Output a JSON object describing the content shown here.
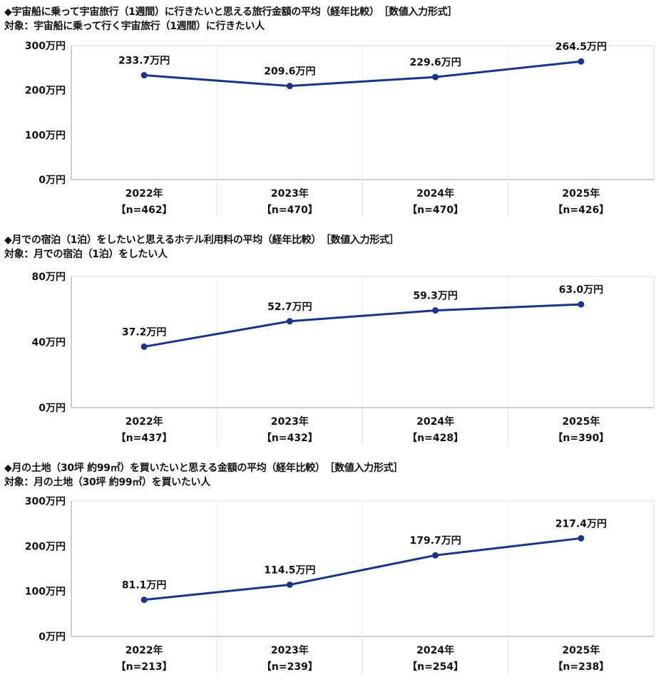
{
  "colors": {
    "line": "#1a3585",
    "grid": "#d9d9d9",
    "axis": "#bfbfbf"
  },
  "charts": [
    {
      "title": "◆宇宙船に乗って宇宙旅行（1週間）に行きたいと思える旅行金額の平均（経年比較）　［数値入力形式］",
      "subtitle": "対象：宇宙船に乗って行く宇宙旅行（1週間）に行きたい人",
      "yticks": [
        "0万円",
        "100万円",
        "200万円",
        "300万円"
      ],
      "years": [
        "2022年",
        "2023年",
        "2024年",
        "2025年"
      ],
      "n": [
        "【n=462】",
        "【n=470】",
        "【n=470】",
        "【n=426】"
      ],
      "labels": [
        "233.7万円",
        "209.6万円",
        "229.6万円",
        "264.5万円"
      ]
    },
    {
      "title": "◆月での宿泊（1泊）をしたいと思えるホテル利用料の平均（経年比較）　［数値入力形式］",
      "subtitle": "対象：月での宿泊（1泊）をしたい人",
      "yticks": [
        "0万円",
        "40万円",
        "80万円"
      ],
      "years": [
        "2022年",
        "2023年",
        "2024年",
        "2025年"
      ],
      "n": [
        "【n=437】",
        "【n=432】",
        "【n=428】",
        "【n=390】"
      ],
      "labels": [
        "37.2万円",
        "52.7万円",
        "59.3万円",
        "63.0万円"
      ]
    },
    {
      "title": "◆月の土地（30坪 約99㎡）を買いたいと思える金額の平均（経年比較）　［数値入力形式］",
      "subtitle": "対象：月の土地（30坪 約99㎡）を買いたい人",
      "yticks": [
        "0万円",
        "100万円",
        "200万円",
        "300万円"
      ],
      "years": [
        "2022年",
        "2023年",
        "2024年",
        "2025年"
      ],
      "n": [
        "【n=213】",
        "【n=239】",
        "【n=254】",
        "【n=238】"
      ],
      "labels": [
        "81.1万円",
        "114.5万円",
        "179.7万円",
        "217.4万円"
      ]
    }
  ],
  "chart_data": [
    {
      "type": "line",
      "title": "◆宇宙船に乗って宇宙旅行（1週間）に行きたいと思える旅行金額の平均（経年比較）　［数値入力形式］",
      "subtitle": "対象：宇宙船に乗って行く宇宙旅行（1週間）に行きたい人",
      "categories": [
        "2022年【n=462】",
        "2023年【n=470】",
        "2024年【n=470】",
        "2025年【n=426】"
      ],
      "values": [
        233.7,
        209.6,
        229.6,
        264.5
      ],
      "unit": "万円",
      "ylim": [
        0,
        300
      ],
      "yticks": [
        0,
        100,
        200,
        300
      ],
      "xlabel": "",
      "ylabel": "",
      "grid": "vertical category separators",
      "legend": "none"
    },
    {
      "type": "line",
      "title": "◆月での宿泊（1泊）をしたいと思えるホテル利用料の平均（経年比較）　［数値入力形式］",
      "subtitle": "対象：月での宿泊（1泊）をしたい人",
      "categories": [
        "2022年【n=437】",
        "2023年【n=432】",
        "2024年【n=428】",
        "2025年【n=390】"
      ],
      "values": [
        37.2,
        52.7,
        59.3,
        63.0
      ],
      "unit": "万円",
      "ylim": [
        0,
        80
      ],
      "yticks": [
        0,
        40,
        80
      ],
      "xlabel": "",
      "ylabel": "",
      "grid": "vertical category separators",
      "legend": "none"
    },
    {
      "type": "line",
      "title": "◆月の土地（30坪 約99㎡）を買いたいと思える金額の平均（経年比較）　［数値入力形式］",
      "subtitle": "対象：月の土地（30坪 約99㎡）を買いたい人",
      "categories": [
        "2022年【n=213】",
        "2023年【n=239】",
        "2024年【n=254】",
        "2025年【n=238】"
      ],
      "values": [
        81.1,
        114.5,
        179.7,
        217.4
      ],
      "unit": "万円",
      "ylim": [
        0,
        300
      ],
      "yticks": [
        0,
        100,
        200,
        300
      ],
      "xlabel": "",
      "ylabel": "",
      "grid": "vertical category separators",
      "legend": "none"
    }
  ]
}
